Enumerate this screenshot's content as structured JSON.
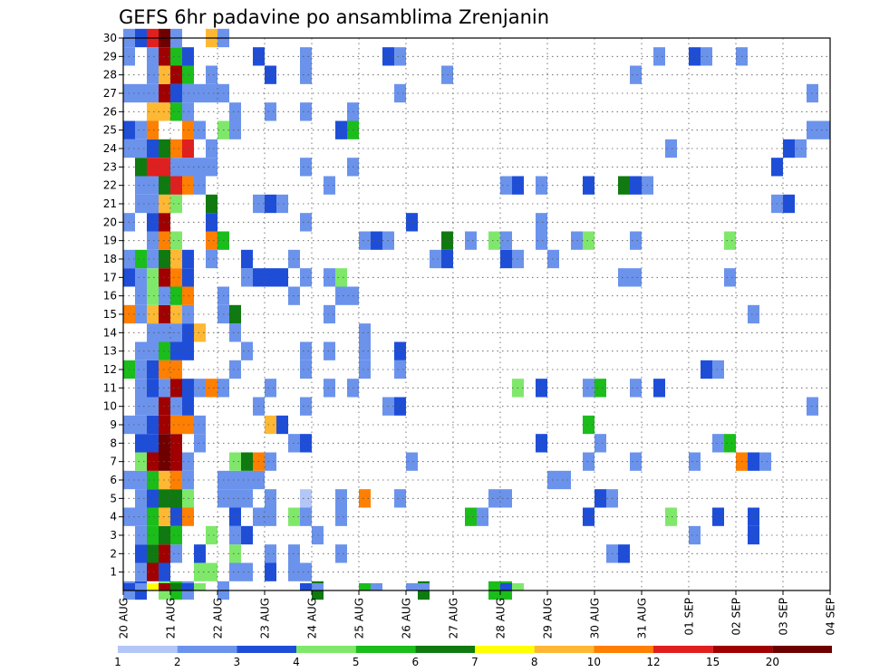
{
  "chart_data": {
    "type": "heatmap",
    "title": "GEFS 6hr padavine po ansamblima Zrenjanin",
    "xlabel": "",
    "ylabel": "",
    "x_ticks": [
      "20 AUG",
      "21 AUG",
      "22 AUG",
      "23 AUG",
      "24 AUG",
      "25 AUG",
      "26 AUG",
      "27 AUG",
      "28 AUG",
      "29 AUG",
      "30 AUG",
      "31 AUG",
      "01 SEP",
      "02 SEP",
      "03 SEP",
      "04 SEP"
    ],
    "y_ticks": [
      1,
      2,
      3,
      4,
      5,
      6,
      7,
      8,
      9,
      10,
      11,
      12,
      13,
      14,
      15,
      16,
      17,
      18,
      19,
      20,
      21,
      22,
      23,
      24,
      25,
      26,
      27,
      28,
      29,
      30
    ],
    "ylim": [
      0,
      30
    ],
    "time_steps_per_day": 4,
    "grid": true,
    "legend_position": "bottom",
    "colorbar": {
      "labels": [
        "1",
        "2",
        "3",
        "4",
        "5",
        "6",
        "7",
        "8",
        "10",
        "12",
        "15",
        "20"
      ],
      "colors": [
        "#b3c7f7",
        "#6b93ec",
        "#1e4ed8",
        "#7fe86a",
        "#1bbd1b",
        "#0f7a0f",
        "#ffff00",
        "#ffb833",
        "#ff7f00",
        "#e01f1f",
        "#a00000",
        "#6e0000"
      ]
    },
    "note": "cells: [day_offset_from_20_AUG_in_6h_steps, ensemble_member, color_class_1_to_12]",
    "cells": [
      [
        0,
        0,
        2
      ],
      [
        1,
        0,
        3
      ],
      [
        3,
        0,
        4
      ],
      [
        4,
        0,
        5
      ],
      [
        5,
        0,
        2
      ],
      [
        8,
        0,
        2
      ],
      [
        16,
        0,
        6
      ],
      [
        25,
        0,
        6
      ],
      [
        31,
        0,
        5
      ],
      [
        32,
        0,
        5
      ],
      [
        1,
        1,
        2
      ],
      [
        2,
        1,
        11
      ],
      [
        3,
        1,
        3
      ],
      [
        6,
        1,
        4
      ],
      [
        7,
        1,
        4
      ],
      [
        9,
        1,
        2
      ],
      [
        10,
        1,
        2
      ],
      [
        12,
        1,
        3
      ],
      [
        14,
        1,
        2
      ],
      [
        15,
        1,
        2
      ],
      [
        1,
        2,
        3
      ],
      [
        2,
        2,
        6
      ],
      [
        3,
        2,
        11
      ],
      [
        4,
        2,
        2
      ],
      [
        6,
        2,
        3
      ],
      [
        9,
        2,
        4
      ],
      [
        12,
        2,
        2
      ],
      [
        14,
        2,
        2
      ],
      [
        18,
        2,
        2
      ],
      [
        41,
        2,
        2
      ],
      [
        42,
        2,
        3
      ],
      [
        1,
        3,
        2
      ],
      [
        2,
        3,
        5
      ],
      [
        3,
        3,
        6
      ],
      [
        4,
        3,
        5
      ],
      [
        7,
        3,
        4
      ],
      [
        9,
        3,
        2
      ],
      [
        10,
        3,
        3
      ],
      [
        16,
        3,
        2
      ],
      [
        48,
        3,
        2
      ],
      [
        53,
        3,
        3
      ],
      [
        0,
        4,
        2
      ],
      [
        1,
        4,
        2
      ],
      [
        2,
        4,
        5
      ],
      [
        3,
        4,
        8
      ],
      [
        4,
        4,
        3
      ],
      [
        5,
        4,
        9
      ],
      [
        9,
        4,
        3
      ],
      [
        11,
        4,
        2
      ],
      [
        12,
        4,
        2
      ],
      [
        14,
        4,
        4
      ],
      [
        15,
        4,
        2
      ],
      [
        18,
        4,
        2
      ],
      [
        29,
        4,
        5
      ],
      [
        30,
        4,
        2
      ],
      [
        39,
        4,
        3
      ],
      [
        46,
        4,
        4
      ],
      [
        50,
        4,
        3
      ],
      [
        53,
        4,
        3
      ],
      [
        1,
        5,
        2
      ],
      [
        2,
        5,
        3
      ],
      [
        3,
        5,
        6
      ],
      [
        4,
        5,
        6
      ],
      [
        5,
        5,
        4
      ],
      [
        8,
        5,
        2
      ],
      [
        9,
        5,
        2
      ],
      [
        10,
        5,
        2
      ],
      [
        12,
        5,
        2
      ],
      [
        15,
        5,
        1
      ],
      [
        18,
        5,
        2
      ],
      [
        20,
        5,
        9
      ],
      [
        23,
        5,
        2
      ],
      [
        31,
        5,
        2
      ],
      [
        32,
        5,
        2
      ],
      [
        40,
        5,
        3
      ],
      [
        41,
        5,
        2
      ],
      [
        0,
        6,
        2
      ],
      [
        1,
        6,
        2
      ],
      [
        2,
        6,
        5
      ],
      [
        3,
        6,
        8
      ],
      [
        4,
        6,
        9
      ],
      [
        5,
        6,
        2
      ],
      [
        8,
        6,
        2
      ],
      [
        9,
        6,
        2
      ],
      [
        10,
        6,
        2
      ],
      [
        11,
        6,
        2
      ],
      [
        36,
        6,
        2
      ],
      [
        37,
        6,
        2
      ],
      [
        1,
        7,
        4
      ],
      [
        2,
        7,
        11
      ],
      [
        3,
        7,
        12
      ],
      [
        4,
        7,
        11
      ],
      [
        5,
        7,
        2
      ],
      [
        9,
        7,
        4
      ],
      [
        10,
        7,
        6
      ],
      [
        11,
        7,
        9
      ],
      [
        12,
        7,
        2
      ],
      [
        24,
        7,
        2
      ],
      [
        39,
        7,
        2
      ],
      [
        43,
        7,
        2
      ],
      [
        48,
        7,
        2
      ],
      [
        52,
        7,
        9
      ],
      [
        53,
        7,
        3
      ],
      [
        54,
        7,
        2
      ],
      [
        1,
        8,
        3
      ],
      [
        2,
        8,
        3
      ],
      [
        3,
        8,
        12
      ],
      [
        4,
        8,
        11
      ],
      [
        6,
        8,
        2
      ],
      [
        14,
        8,
        2
      ],
      [
        15,
        8,
        3
      ],
      [
        35,
        8,
        3
      ],
      [
        40,
        8,
        2
      ],
      [
        50,
        8,
        2
      ],
      [
        51,
        8,
        5
      ],
      [
        0,
        9,
        2
      ],
      [
        1,
        9,
        2
      ],
      [
        2,
        9,
        3
      ],
      [
        3,
        9,
        11
      ],
      [
        4,
        9,
        9
      ],
      [
        5,
        9,
        9
      ],
      [
        6,
        9,
        2
      ],
      [
        12,
        9,
        8
      ],
      [
        13,
        9,
        3
      ],
      [
        39,
        9,
        5
      ],
      [
        1,
        10,
        2
      ],
      [
        2,
        10,
        2
      ],
      [
        3,
        10,
        11
      ],
      [
        4,
        10,
        2
      ],
      [
        5,
        10,
        3
      ],
      [
        11,
        10,
        2
      ],
      [
        15,
        10,
        2
      ],
      [
        22,
        10,
        2
      ],
      [
        23,
        10,
        3
      ],
      [
        58,
        10,
        2
      ],
      [
        1,
        11,
        2
      ],
      [
        2,
        11,
        3
      ],
      [
        3,
        11,
        2
      ],
      [
        4,
        11,
        11
      ],
      [
        5,
        11,
        3
      ],
      [
        6,
        11,
        2
      ],
      [
        7,
        11,
        9
      ],
      [
        8,
        11,
        2
      ],
      [
        12,
        11,
        2
      ],
      [
        17,
        11,
        2
      ],
      [
        19,
        11,
        2
      ],
      [
        33,
        11,
        4
      ],
      [
        35,
        11,
        3
      ],
      [
        39,
        11,
        2
      ],
      [
        40,
        11,
        5
      ],
      [
        43,
        11,
        2
      ],
      [
        45,
        11,
        3
      ],
      [
        0,
        12,
        5
      ],
      [
        1,
        12,
        2
      ],
      [
        2,
        12,
        3
      ],
      [
        3,
        12,
        9
      ],
      [
        4,
        12,
        9
      ],
      [
        9,
        12,
        2
      ],
      [
        15,
        12,
        2
      ],
      [
        20,
        12,
        2
      ],
      [
        23,
        12,
        2
      ],
      [
        49,
        12,
        3
      ],
      [
        50,
        12,
        2
      ],
      [
        1,
        13,
        2
      ],
      [
        2,
        13,
        2
      ],
      [
        3,
        13,
        5
      ],
      [
        4,
        13,
        3
      ],
      [
        5,
        13,
        3
      ],
      [
        10,
        13,
        2
      ],
      [
        15,
        13,
        2
      ],
      [
        17,
        13,
        2
      ],
      [
        20,
        13,
        2
      ],
      [
        23,
        13,
        3
      ],
      [
        2,
        14,
        2
      ],
      [
        3,
        14,
        2
      ],
      [
        4,
        14,
        2
      ],
      [
        5,
        14,
        3
      ],
      [
        6,
        14,
        8
      ],
      [
        9,
        14,
        2
      ],
      [
        20,
        14,
        2
      ],
      [
        0,
        15,
        9
      ],
      [
        1,
        15,
        2
      ],
      [
        2,
        15,
        8
      ],
      [
        3,
        15,
        11
      ],
      [
        4,
        15,
        8
      ],
      [
        5,
        15,
        2
      ],
      [
        8,
        15,
        2
      ],
      [
        9,
        15,
        6
      ],
      [
        17,
        15,
        2
      ],
      [
        53,
        15,
        2
      ],
      [
        1,
        16,
        2
      ],
      [
        2,
        16,
        4
      ],
      [
        3,
        16,
        2
      ],
      [
        4,
        16,
        5
      ],
      [
        5,
        16,
        9
      ],
      [
        8,
        16,
        2
      ],
      [
        14,
        16,
        2
      ],
      [
        18,
        16,
        2
      ],
      [
        19,
        16,
        2
      ],
      [
        0,
        17,
        3
      ],
      [
        1,
        17,
        2
      ],
      [
        2,
        17,
        4
      ],
      [
        3,
        17,
        11
      ],
      [
        4,
        17,
        9
      ],
      [
        5,
        17,
        3
      ],
      [
        10,
        17,
        2
      ],
      [
        11,
        17,
        3
      ],
      [
        12,
        17,
        3
      ],
      [
        13,
        17,
        3
      ],
      [
        15,
        17,
        2
      ],
      [
        17,
        17,
        2
      ],
      [
        18,
        17,
        4
      ],
      [
        42,
        17,
        2
      ],
      [
        43,
        17,
        2
      ],
      [
        51,
        17,
        2
      ],
      [
        0,
        18,
        2
      ],
      [
        1,
        18,
        5
      ],
      [
        2,
        18,
        2
      ],
      [
        3,
        18,
        6
      ],
      [
        4,
        18,
        8
      ],
      [
        5,
        18,
        3
      ],
      [
        7,
        18,
        2
      ],
      [
        10,
        18,
        3
      ],
      [
        14,
        18,
        2
      ],
      [
        26,
        18,
        2
      ],
      [
        27,
        18,
        3
      ],
      [
        32,
        18,
        3
      ],
      [
        33,
        18,
        2
      ],
      [
        36,
        18,
        2
      ],
      [
        2,
        19,
        2
      ],
      [
        3,
        19,
        9
      ],
      [
        4,
        19,
        4
      ],
      [
        7,
        19,
        9
      ],
      [
        8,
        19,
        5
      ],
      [
        20,
        19,
        2
      ],
      [
        21,
        19,
        3
      ],
      [
        22,
        19,
        2
      ],
      [
        27,
        19,
        6
      ],
      [
        29,
        19,
        2
      ],
      [
        31,
        19,
        4
      ],
      [
        32,
        19,
        2
      ],
      [
        35,
        19,
        2
      ],
      [
        38,
        19,
        2
      ],
      [
        39,
        19,
        4
      ],
      [
        43,
        19,
        2
      ],
      [
        51,
        19,
        4
      ],
      [
        0,
        20,
        2
      ],
      [
        2,
        20,
        3
      ],
      [
        3,
        20,
        11
      ],
      [
        7,
        20,
        3
      ],
      [
        15,
        20,
        2
      ],
      [
        24,
        20,
        3
      ],
      [
        35,
        20,
        2
      ],
      [
        1,
        21,
        2
      ],
      [
        2,
        21,
        2
      ],
      [
        3,
        21,
        8
      ],
      [
        4,
        21,
        4
      ],
      [
        7,
        21,
        6
      ],
      [
        11,
        21,
        2
      ],
      [
        12,
        21,
        3
      ],
      [
        13,
        21,
        2
      ],
      [
        55,
        21,
        2
      ],
      [
        56,
        21,
        3
      ],
      [
        1,
        22,
        2
      ],
      [
        2,
        22,
        2
      ],
      [
        3,
        22,
        6
      ],
      [
        4,
        22,
        10
      ],
      [
        5,
        22,
        9
      ],
      [
        6,
        22,
        2
      ],
      [
        17,
        22,
        2
      ],
      [
        32,
        22,
        2
      ],
      [
        33,
        22,
        3
      ],
      [
        35,
        22,
        2
      ],
      [
        39,
        22,
        3
      ],
      [
        42,
        22,
        6
      ],
      [
        43,
        22,
        3
      ],
      [
        44,
        22,
        2
      ],
      [
        1,
        23,
        6
      ],
      [
        2,
        23,
        10
      ],
      [
        3,
        23,
        10
      ],
      [
        4,
        23,
        2
      ],
      [
        5,
        23,
        2
      ],
      [
        6,
        23,
        2
      ],
      [
        7,
        23,
        2
      ],
      [
        15,
        23,
        2
      ],
      [
        19,
        23,
        2
      ],
      [
        55,
        23,
        3
      ],
      [
        0,
        24,
        2
      ],
      [
        1,
        24,
        2
      ],
      [
        2,
        24,
        3
      ],
      [
        3,
        24,
        6
      ],
      [
        4,
        24,
        9
      ],
      [
        5,
        24,
        10
      ],
      [
        7,
        24,
        2
      ],
      [
        46,
        24,
        2
      ],
      [
        56,
        24,
        3
      ],
      [
        57,
        24,
        2
      ],
      [
        0,
        25,
        3
      ],
      [
        1,
        25,
        2
      ],
      [
        2,
        25,
        9
      ],
      [
        5,
        25,
        9
      ],
      [
        6,
        25,
        2
      ],
      [
        8,
        25,
        4
      ],
      [
        9,
        25,
        2
      ],
      [
        18,
        25,
        3
      ],
      [
        19,
        25,
        5
      ],
      [
        58,
        25,
        2
      ],
      [
        59,
        25,
        2
      ],
      [
        2,
        26,
        8
      ],
      [
        3,
        26,
        8
      ],
      [
        4,
        26,
        5
      ],
      [
        5,
        26,
        2
      ],
      [
        9,
        26,
        2
      ],
      [
        12,
        26,
        2
      ],
      [
        15,
        26,
        2
      ],
      [
        19,
        26,
        2
      ],
      [
        0,
        27,
        2
      ],
      [
        1,
        27,
        2
      ],
      [
        2,
        27,
        2
      ],
      [
        3,
        27,
        11
      ],
      [
        4,
        27,
        3
      ],
      [
        5,
        27,
        2
      ],
      [
        6,
        27,
        2
      ],
      [
        7,
        27,
        2
      ],
      [
        8,
        27,
        2
      ],
      [
        23,
        27,
        2
      ],
      [
        58,
        27,
        2
      ],
      [
        2,
        28,
        2
      ],
      [
        3,
        28,
        8
      ],
      [
        4,
        28,
        11
      ],
      [
        5,
        28,
        5
      ],
      [
        7,
        28,
        2
      ],
      [
        12,
        28,
        3
      ],
      [
        15,
        28,
        2
      ],
      [
        27,
        28,
        2
      ],
      [
        43,
        28,
        2
      ],
      [
        0,
        29,
        2
      ],
      [
        2,
        29,
        2
      ],
      [
        3,
        29,
        11
      ],
      [
        4,
        29,
        5
      ],
      [
        5,
        29,
        3
      ],
      [
        11,
        29,
        3
      ],
      [
        15,
        29,
        2
      ],
      [
        22,
        29,
        3
      ],
      [
        23,
        29,
        2
      ],
      [
        45,
        29,
        2
      ],
      [
        48,
        29,
        3
      ],
      [
        49,
        29,
        2
      ],
      [
        52,
        29,
        2
      ],
      [
        0,
        30,
        2
      ],
      [
        1,
        30,
        3
      ],
      [
        2,
        30,
        10
      ],
      [
        3,
        30,
        12
      ],
      [
        4,
        30,
        2
      ],
      [
        7,
        30,
        8
      ],
      [
        8,
        30,
        2
      ]
    ],
    "bottom_row": [
      [
        0,
        3
      ],
      [
        1,
        2
      ],
      [
        2,
        7
      ],
      [
        3,
        11
      ],
      [
        4,
        6
      ],
      [
        5,
        3
      ],
      [
        6,
        4
      ],
      [
        15,
        3
      ],
      [
        16,
        2
      ],
      [
        20,
        5
      ],
      [
        21,
        2
      ],
      [
        24,
        2
      ],
      [
        25,
        2
      ],
      [
        32,
        3
      ],
      [
        33,
        4
      ]
    ]
  }
}
